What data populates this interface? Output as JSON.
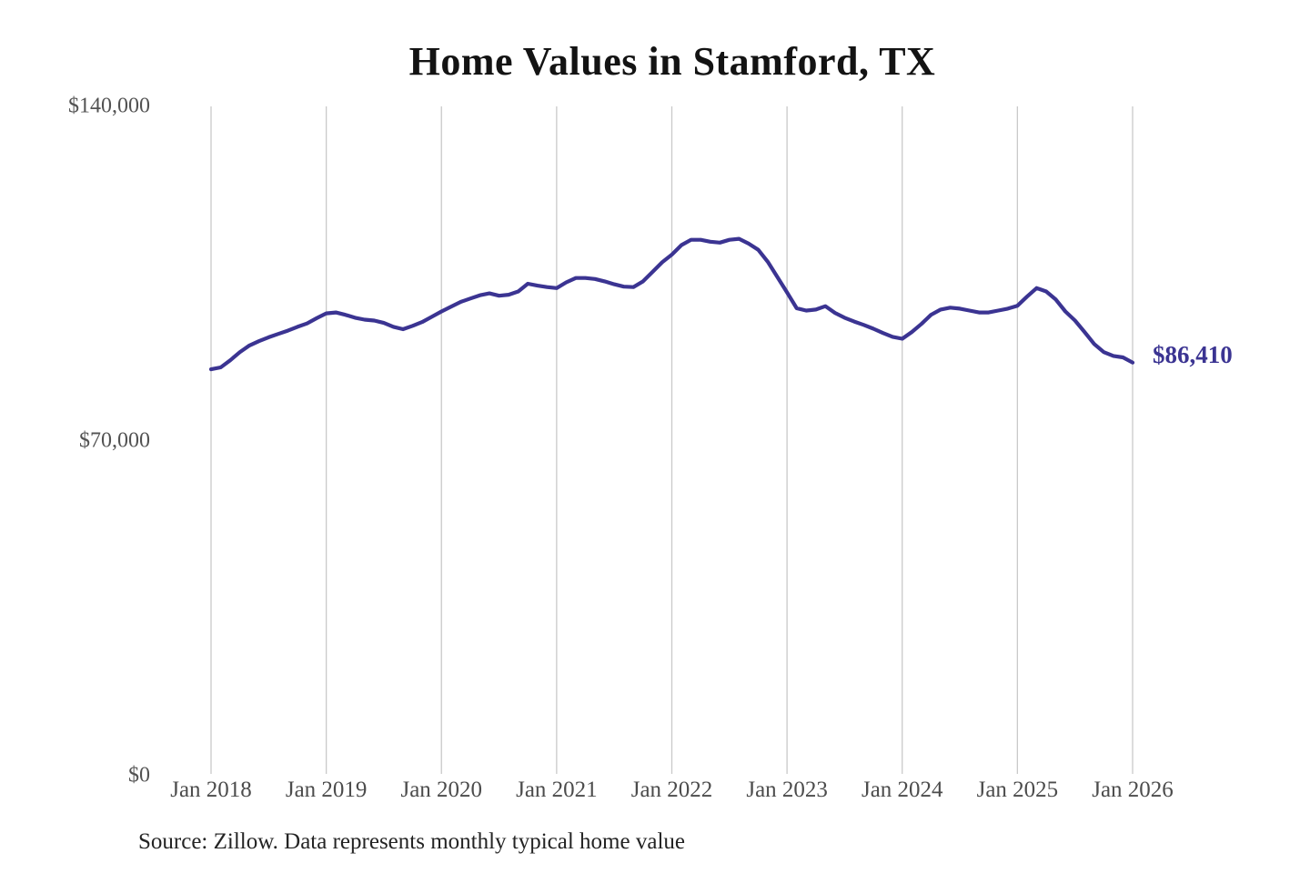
{
  "title": "Home Values in Stamford, TX",
  "source": "Source: Zillow. Data represents monthly typical home value",
  "end_label": "$86,410",
  "colors": {
    "line": "#3b3492",
    "grid": "#c9c9c9",
    "axis_text": "#4c4c4c",
    "title_text": "#131313",
    "end_label_text": "#3b3492",
    "background": "#ffffff"
  },
  "chart_data": {
    "type": "line",
    "title": "Home Values in Stamford, TX",
    "xlabel": "",
    "ylabel": "",
    "ylim": [
      0,
      140000
    ],
    "grid": "vertical-only",
    "legend": "none",
    "x_ticks": [
      "Jan 2018",
      "Jan 2019",
      "Jan 2020",
      "Jan 2021",
      "Jan 2022",
      "Jan 2023",
      "Jan 2024",
      "Jan 2025",
      "Jan 2026"
    ],
    "y_ticks": [
      {
        "label": "$0",
        "value": 0
      },
      {
        "label": "$70,000",
        "value": 70000
      },
      {
        "label": "$140,000",
        "value": 140000
      }
    ],
    "series": [
      {
        "name": "Monthly typical home value",
        "start_month": "2018-01",
        "end_month": "2026-01",
        "frequency": "monthly",
        "last_value_label": "$86,410",
        "values": [
          85000,
          85400,
          86900,
          88600,
          90000,
          90900,
          91700,
          92400,
          93100,
          93900,
          94600,
          95700,
          96700,
          96900,
          96400,
          95800,
          95400,
          95200,
          94700,
          93900,
          93400,
          94100,
          94900,
          96000,
          97100,
          98100,
          99100,
          99800,
          100500,
          100900,
          100400,
          100600,
          101300,
          102900,
          102500,
          102200,
          102000,
          103200,
          104100,
          104100,
          103900,
          103400,
          102800,
          102300,
          102200,
          103400,
          105400,
          107400,
          109000,
          111000,
          112100,
          112100,
          111700,
          111500,
          112100,
          112300,
          111300,
          110000,
          107500,
          104300,
          101100,
          97800,
          97300,
          97500,
          98200,
          96800,
          95800,
          95000,
          94300,
          93500,
          92600,
          91800,
          91400,
          92800,
          94500,
          96400,
          97500,
          97900,
          97700,
          97300,
          96900,
          96900,
          97300,
          97700,
          98300,
          100200,
          102000,
          101300,
          99600,
          97100,
          95200,
          92800,
          90300,
          88600,
          87800,
          87500,
          86410
        ]
      }
    ]
  }
}
